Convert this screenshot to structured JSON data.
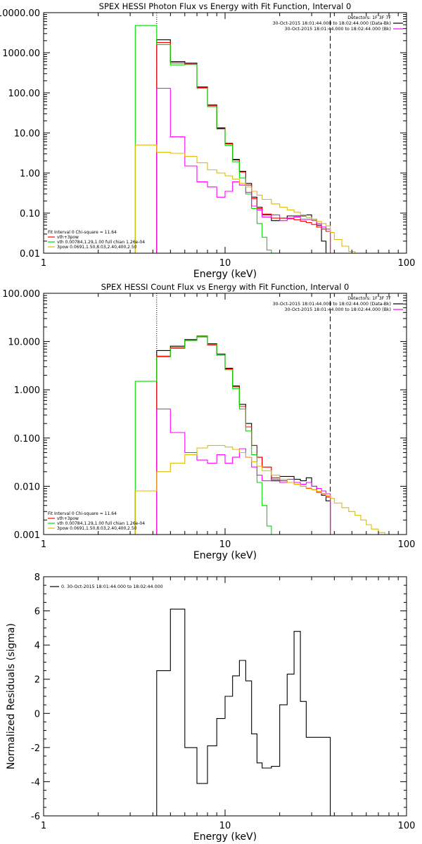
{
  "chart_data": [
    {
      "type": "line",
      "title": "SPEX HESSI Photon Flux vs Energy with Fit Function, Interval 0",
      "xlabel": "Energy (keV)",
      "ylabel": "",
      "xscale": "log",
      "yscale": "log",
      "xlim": [
        1,
        100
      ],
      "ylim": [
        0.01,
        10000
      ],
      "xticks": [
        {
          "value": 1,
          "label": "1"
        },
        {
          "value": 10,
          "label": "10"
        },
        {
          "value": 100,
          "label": "100"
        }
      ],
      "yticks": [
        {
          "value": 0.01,
          "label": "0.01"
        },
        {
          "value": 0.1,
          "label": "0.10"
        },
        {
          "value": 1,
          "label": "1.00"
        },
        {
          "value": 10,
          "label": "10.00"
        },
        {
          "value": 100,
          "label": "100.00"
        },
        {
          "value": 1000,
          "label": "1000.00"
        },
        {
          "value": 10000,
          "label": "10000.00"
        }
      ],
      "vlines": [
        {
          "x": 4.2,
          "style": "dotted",
          "color": "#000000"
        },
        {
          "x": 38,
          "style": "dashed",
          "color": "#000000"
        }
      ],
      "legend_top_right": [
        {
          "text": "Detectors: 1F 3F 7F",
          "color": ""
        },
        {
          "text": "30-Oct-2015 18:01:44.000 to 18:02:44.000 (Data-Bk)",
          "color": "#000000"
        },
        {
          "text": "30-Oct-2015 18:01:44.000 to 18:02:44.000 (Bk)",
          "color": "#ff00ff"
        }
      ],
      "legend_bottom_left": [
        {
          "text": "Fit Interval 0   Chi-square = 11.64",
          "color": ""
        },
        {
          "text": "vth+3pow",
          "color": "#ff0000"
        },
        {
          "text": "vth 0.00784,1.29,1.00  full chian 1.26e-04",
          "color": "#00dd00"
        },
        {
          "text": "3pow 0.0691,1.50,8.03,2.40,400,2.50",
          "color": "#ddbb00"
        }
      ],
      "series": [
        {
          "color": "#000000",
          "edges": [
            4.2,
            5,
            6,
            7,
            8,
            9,
            10,
            11,
            12,
            13,
            14,
            15,
            16,
            18,
            20,
            22,
            24,
            26,
            28,
            30,
            32,
            34,
            36,
            38
          ],
          "values": [
            2100,
            600,
            550,
            140,
            50,
            13,
            5.5,
            2.2,
            1.1,
            0.55,
            0.25,
            0.14,
            0.09,
            0.065,
            0.075,
            0.085,
            0.085,
            0.085,
            0.09,
            0.07,
            0.05,
            0.02,
            0.01
          ]
        },
        {
          "color": "#ff0000",
          "edges": [
            4.2,
            5,
            6,
            7,
            8,
            9,
            10,
            11,
            12,
            13,
            14,
            15,
            16,
            18,
            20,
            22,
            24,
            26,
            28,
            30,
            32,
            34,
            36,
            38
          ],
          "values": [
            1800,
            560,
            520,
            135,
            48,
            13.5,
            5.3,
            2.1,
            1.05,
            0.5,
            0.23,
            0.13,
            0.095,
            0.075,
            0.075,
            0.072,
            0.068,
            0.063,
            0.058,
            0.052,
            0.045,
            0.04,
            0.035
          ]
        },
        {
          "color": "#00dd00",
          "edges": [
            3.2,
            4.2,
            5,
            6,
            7,
            8,
            9,
            10,
            11,
            12,
            13,
            14,
            15,
            16,
            17,
            18
          ],
          "values": [
            4800,
            1600,
            500,
            510,
            130,
            45,
            12.5,
            4.9,
            1.9,
            0.75,
            0.3,
            0.13,
            0.055,
            0.025,
            0.012
          ]
        },
        {
          "color": "#ff00ff",
          "edges": [
            4.2,
            5,
            6,
            7,
            8,
            9,
            10,
            11,
            12,
            13,
            14,
            15,
            16,
            18,
            20,
            22,
            24,
            26,
            28,
            30,
            32,
            34,
            36,
            38
          ],
          "values": [
            130,
            8,
            1.5,
            0.6,
            0.45,
            0.25,
            0.35,
            0.6,
            0.5,
            0.33,
            0.15,
            0.12,
            0.08,
            0.09,
            0.065,
            0.075,
            0.08,
            0.07,
            0.07,
            0.065,
            0.055,
            0.045,
            0.04
          ]
        },
        {
          "color": "#ddbb00",
          "edges": [
            3.2,
            4.2,
            5,
            6,
            7,
            8,
            9,
            10,
            11,
            12,
            13,
            14,
            15,
            16,
            18,
            20,
            22,
            24,
            26,
            28,
            30,
            32,
            34,
            36,
            38,
            40,
            44,
            48,
            52,
            56
          ],
          "values": [
            5,
            3.3,
            3.1,
            2.6,
            1.8,
            1.2,
            1.0,
            0.85,
            0.7,
            0.55,
            0.45,
            0.35,
            0.28,
            0.22,
            0.17,
            0.14,
            0.12,
            0.105,
            0.09,
            0.078,
            0.07,
            0.062,
            0.055,
            0.048,
            0.033,
            0.022,
            0.015,
            0.011,
            0.009
          ]
        }
      ]
    },
    {
      "type": "line",
      "title": "SPEX HESSI Count Flux vs Energy with Fit Function, Interval 0",
      "xlabel": "Energy (keV)",
      "ylabel": "",
      "xscale": "log",
      "yscale": "log",
      "xlim": [
        1,
        100
      ],
      "ylim": [
        0.001,
        100
      ],
      "xticks": [
        {
          "value": 1,
          "label": "1"
        },
        {
          "value": 10,
          "label": "10"
        },
        {
          "value": 100,
          "label": "100"
        }
      ],
      "yticks": [
        {
          "value": 0.001,
          "label": "0.001"
        },
        {
          "value": 0.01,
          "label": "0.010"
        },
        {
          "value": 0.1,
          "label": "0.100"
        },
        {
          "value": 1,
          "label": "1.000"
        },
        {
          "value": 10,
          "label": "10.000"
        },
        {
          "value": 100,
          "label": "100.000"
        }
      ],
      "vlines": [
        {
          "x": 4.2,
          "style": "dotted",
          "color": "#000000"
        },
        {
          "x": 38,
          "style": "dashed",
          "color": "#000000"
        }
      ],
      "legend_top_right": [
        {
          "text": "Detectors: 1F 3F 7F",
          "color": ""
        },
        {
          "text": "30-Oct-2015 18:01:44.000 to 18:02:44.000 (Data-Bk)",
          "color": "#000000"
        },
        {
          "text": "30-Oct-2015 18:01:44.000 to 18:02:44.000 (Bk)",
          "color": "#ff00ff"
        }
      ],
      "legend_bottom_left": [
        {
          "text": "Fit Interval 0   Chi-square = 11.64",
          "color": ""
        },
        {
          "text": "vth+3pow",
          "color": "#ff0000"
        },
        {
          "text": "vth 0.00784,1.29,1.00  full chian 1.26e-04",
          "color": "#00dd00"
        },
        {
          "text": "3pow 0.0691,1.50,8.03,2.40,400,2.50",
          "color": "#ddbb00"
        }
      ],
      "series": [
        {
          "color": "#000000",
          "edges": [
            3.2,
            4.2,
            5,
            6,
            7,
            8,
            9,
            10,
            11,
            12,
            13,
            14,
            15,
            16,
            18,
            20,
            22,
            24,
            26,
            28,
            30,
            32,
            34,
            36,
            38
          ],
          "values": [
            0.008,
            6.5,
            8,
            11,
            13,
            9,
            5.5,
            2.8,
            1.2,
            0.5,
            0.2,
            0.07,
            0.04,
            0.025,
            0.013,
            0.016,
            0.016,
            0.014,
            0.013,
            0.015,
            0.01,
            0.0075,
            0.0065,
            0.005
          ]
        },
        {
          "color": "#ff0000",
          "edges": [
            4.2,
            5,
            6,
            7,
            8,
            9,
            10,
            11,
            12,
            13,
            14,
            15,
            16,
            18,
            20,
            22,
            24,
            26,
            28,
            30,
            32,
            34,
            36,
            38
          ],
          "values": [
            5,
            7.5,
            10.5,
            12.5,
            8.5,
            5.2,
            2.7,
            1.15,
            0.45,
            0.17,
            0.07,
            0.04,
            0.025,
            0.015,
            0.013,
            0.012,
            0.011,
            0.01,
            0.009,
            0.0085,
            0.0075,
            0.007,
            0.006
          ]
        },
        {
          "color": "#00dd00",
          "edges": [
            3.2,
            4.2,
            5,
            6,
            7,
            8,
            9,
            10,
            11,
            12,
            13,
            14,
            15,
            16,
            17,
            18
          ],
          "values": [
            1.5,
            4.8,
            7.2,
            10.5,
            12.8,
            8.8,
            5.2,
            2.6,
            1.05,
            0.4,
            0.14,
            0.045,
            0.012,
            0.004,
            0.0015
          ]
        },
        {
          "color": "#ff00ff",
          "edges": [
            4.2,
            5,
            6,
            7,
            8,
            9,
            10,
            11,
            12,
            13,
            14,
            15,
            16,
            18,
            20,
            22,
            24,
            26,
            28,
            30,
            32,
            34,
            36,
            38
          ],
          "values": [
            0.4,
            0.13,
            0.05,
            0.035,
            0.03,
            0.045,
            0.03,
            0.04,
            0.06,
            0.04,
            0.025,
            0.017,
            0.013,
            0.014,
            0.012,
            0.014,
            0.012,
            0.011,
            0.012,
            0.01,
            0.009,
            0.008,
            0.007
          ]
        },
        {
          "color": "#ddbb00",
          "edges": [
            3.2,
            4.2,
            5,
            6,
            7,
            8,
            9,
            10,
            11,
            12,
            13,
            14,
            15,
            16,
            18,
            20,
            22,
            24,
            26,
            28,
            30,
            32,
            34,
            36,
            38,
            40,
            44,
            48,
            52,
            56,
            60,
            64,
            70,
            76
          ],
          "values": [
            0.008,
            0.02,
            0.03,
            0.045,
            0.062,
            0.07,
            0.07,
            0.065,
            0.058,
            0.05,
            0.04,
            0.032,
            0.026,
            0.021,
            0.017,
            0.014,
            0.012,
            0.011,
            0.01,
            0.0092,
            0.0085,
            0.0078,
            0.0071,
            0.0064,
            0.0056,
            0.0045,
            0.0036,
            0.003,
            0.0025,
            0.002,
            0.0016,
            0.0013,
            0.0011
          ]
        }
      ]
    },
    {
      "type": "line",
      "title": "",
      "xlabel": "Energy (keV)",
      "ylabel": "Normalized Residuals (sigma)",
      "xscale": "log",
      "yscale": "linear",
      "xlim": [
        1,
        100
      ],
      "ylim": [
        -6,
        8
      ],
      "xticks": [
        {
          "value": 1,
          "label": "1"
        },
        {
          "value": 10,
          "label": "10"
        },
        {
          "value": 100,
          "label": "100"
        }
      ],
      "yticks": [
        {
          "value": -6,
          "label": "-6"
        },
        {
          "value": -4,
          "label": "-4"
        },
        {
          "value": -2,
          "label": "-2"
        },
        {
          "value": 0,
          "label": "0"
        },
        {
          "value": 2,
          "label": "2"
        },
        {
          "value": 4,
          "label": "4"
        },
        {
          "value": 6,
          "label": "6"
        },
        {
          "value": 8,
          "label": "8"
        }
      ],
      "legend_top_left": [
        {
          "text": "0. 30-Oct-2015 18:01:44.000 to 18:02:44.000",
          "color": "#000000"
        }
      ],
      "series": [
        {
          "color": "#000000",
          "edges": [
            4.2,
            5,
            6,
            7,
            8,
            9,
            10,
            11,
            12,
            13,
            14,
            15,
            16,
            18,
            20,
            22,
            24,
            26,
            28,
            30,
            32,
            34,
            36,
            38
          ],
          "values": [
            2.5,
            6.1,
            -2.0,
            -4.1,
            -1.9,
            -0.3,
            1.0,
            2.2,
            3.1,
            1.9,
            -1.2,
            -2.9,
            -3.2,
            -3.1,
            0.5,
            2.3,
            4.8,
            0.7,
            -1.4,
            -1.4,
            -1.4,
            -1.4,
            -1.4
          ],
          "start_from_bottom": true
        }
      ]
    }
  ]
}
